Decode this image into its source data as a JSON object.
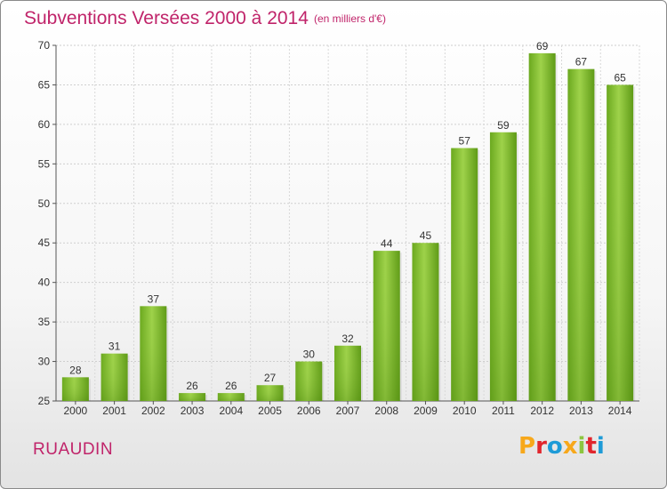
{
  "header": {
    "title": "Subventions Versées 2000 à 2014",
    "unit": "(en milliers d'€)"
  },
  "footer": {
    "commune": "RUAUDIN",
    "logo_text": "Proxiti",
    "logo_colors": [
      "#f7a81b",
      "#e1262d",
      "#1e9bd7",
      "#f7a81b",
      "#8cc63f",
      "#e1262d",
      "#1e9bd7"
    ]
  },
  "chart_data": {
    "type": "bar",
    "title": "Subventions Versées 2000 à 2014",
    "xlabel": "",
    "ylabel": "",
    "ylim": [
      25,
      70
    ],
    "yticks": [
      25,
      30,
      35,
      40,
      45,
      50,
      55,
      60,
      65,
      70
    ],
    "grid": true,
    "bar_color": "#7fbf2e",
    "categories": [
      "2000",
      "2001",
      "2002",
      "2003",
      "2004",
      "2005",
      "2006",
      "2007",
      "2008",
      "2009",
      "2010",
      "2011",
      "2012",
      "2013",
      "2014"
    ],
    "values": [
      28,
      31,
      37,
      26,
      26,
      27,
      30,
      32,
      44,
      45,
      57,
      59,
      69,
      67,
      65
    ]
  }
}
